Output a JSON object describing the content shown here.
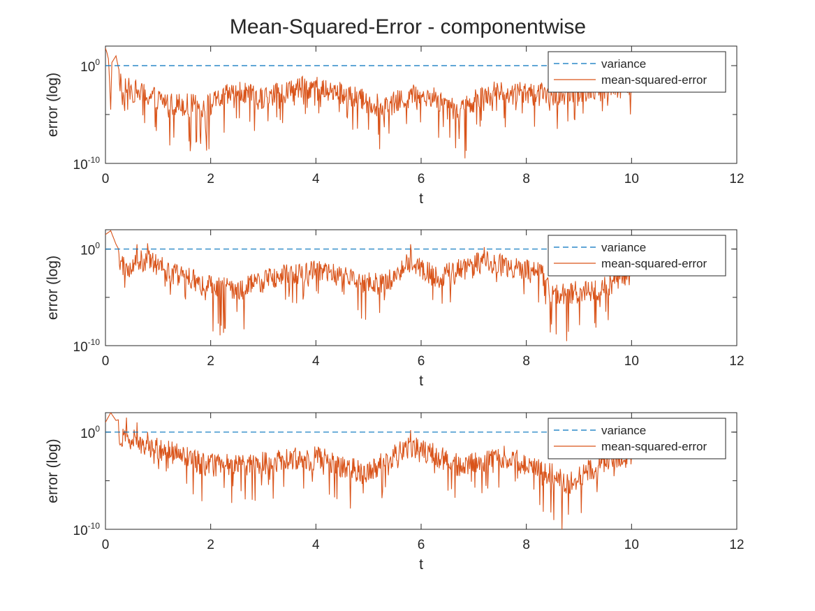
{
  "figure": {
    "title": "Mean-Squared-Error - componentwise"
  },
  "chart_data": [
    {
      "type": "line",
      "xlabel": "t",
      "ylabel": "error (log)",
      "xlim": [
        0,
        12
      ],
      "ylim_log10": [
        -10,
        2
      ],
      "yscale": "log",
      "xticks": [
        "0",
        "2",
        "4",
        "6",
        "8",
        "10",
        "12"
      ],
      "yticks": [
        {
          "base": "10",
          "exp": "-10",
          "value": -10
        },
        {
          "base": "10",
          "exp": "0",
          "value": 0
        }
      ],
      "legend_position": "top-right",
      "series": [
        {
          "name": "variance",
          "style": "dashed",
          "color": "#0072BD",
          "value": 1,
          "x_range": [
            0,
            10
          ]
        },
        {
          "name": "mean-squared-error",
          "style": "solid",
          "color": "#D95319",
          "x_range": [
            0,
            10
          ],
          "points": [
            [
              0,
              1.8
            ],
            [
              0.03,
              1.3
            ],
            [
              0.06,
              0.6
            ],
            [
              0.1,
              -4.5
            ],
            [
              0.12,
              0.3
            ],
            [
              0.2,
              1
            ],
            [
              0.3,
              -1.6
            ],
            [
              0.5,
              -2.5
            ],
            [
              1.2,
              -5.3
            ],
            [
              1.9,
              -6.3
            ],
            [
              2.5,
              -2.6
            ],
            [
              2.9,
              -4.5
            ],
            [
              3.6,
              -2.3
            ],
            [
              4.0,
              -1.5
            ],
            [
              5.3,
              -6.3
            ],
            [
              6.0,
              -3.0
            ],
            [
              6.5,
              -5.5
            ],
            [
              6.72,
              -7.5
            ],
            [
              7.2,
              -3.0
            ],
            [
              8.5,
              -3.5
            ],
            [
              9.2,
              -2.3
            ],
            [
              9.8,
              -1.6
            ],
            [
              10,
              -2.0
            ]
          ]
        }
      ]
    },
    {
      "type": "line",
      "xlabel": "t",
      "ylabel": "error (log)",
      "xlim": [
        0,
        12
      ],
      "ylim_log10": [
        -10,
        2
      ],
      "yscale": "log",
      "xticks": [
        "0",
        "2",
        "4",
        "6",
        "8",
        "10",
        "12"
      ],
      "yticks": [
        {
          "base": "10",
          "exp": "-10",
          "value": -10
        },
        {
          "base": "10",
          "exp": "0",
          "value": 0
        }
      ],
      "legend_position": "top-right",
      "series": [
        {
          "name": "variance",
          "style": "dashed",
          "color": "#0072BD",
          "value": 1,
          "x_range": [
            0,
            10
          ]
        },
        {
          "name": "mean-squared-error",
          "style": "solid",
          "color": "#D95319",
          "x_range": [
            0,
            10
          ],
          "points": [
            [
              0,
              1.5
            ],
            [
              0.1,
              1.9
            ],
            [
              0.2,
              0.5
            ],
            [
              0.4,
              -1.5
            ],
            [
              0.6,
              0.5
            ],
            [
              0.8,
              0.6
            ],
            [
              1.0,
              -1.0
            ],
            [
              1.9,
              -5.3
            ],
            [
              2.5,
              -6.5
            ],
            [
              3.3,
              -3.0
            ],
            [
              4.0,
              -2.0
            ],
            [
              5.3,
              -5.3
            ],
            [
              5.8,
              0.5
            ],
            [
              6.3,
              -3.5
            ],
            [
              7.2,
              0.2
            ],
            [
              8.4,
              -3.0
            ],
            [
              8.48,
              -7.8
            ],
            [
              9.4,
              -6.0
            ],
            [
              10,
              -2.3
            ]
          ]
        }
      ]
    },
    {
      "type": "line",
      "xlabel": "t",
      "ylabel": "error (log)",
      "xlim": [
        0,
        12
      ],
      "ylim_log10": [
        -10,
        2
      ],
      "yscale": "log",
      "xticks": [
        "0",
        "2",
        "4",
        "6",
        "8",
        "10",
        "12"
      ],
      "yticks": [
        {
          "base": "10",
          "exp": "-10",
          "value": -10
        },
        {
          "base": "10",
          "exp": "0",
          "value": 0
        }
      ],
      "legend_position": "top-right",
      "series": [
        {
          "name": "variance",
          "style": "dashed",
          "color": "#0072BD",
          "value": 1,
          "x_range": [
            0,
            10
          ]
        },
        {
          "name": "mean-squared-error",
          "style": "solid",
          "color": "#D95319",
          "x_range": [
            0,
            10
          ],
          "points": [
            [
              0,
              1.0
            ],
            [
              0.1,
              2.0
            ],
            [
              0.2,
              1.2
            ],
            [
              0.4,
              1.5
            ],
            [
              0.6,
              1.0
            ],
            [
              0.8,
              0.0
            ],
            [
              1.5,
              -2.5
            ],
            [
              1.9,
              -4.5
            ],
            [
              3.0,
              -4.0
            ],
            [
              4.0,
              -2.5
            ],
            [
              4.9,
              -6.3
            ],
            [
              5.4,
              -3.0
            ],
            [
              5.8,
              0.2
            ],
            [
              6.7,
              -4.5
            ],
            [
              7.6,
              -2.5
            ],
            [
              8.3,
              -5.5
            ],
            [
              8.8,
              -8.5
            ],
            [
              9.5,
              -3.5
            ],
            [
              10,
              -2.5
            ]
          ]
        }
      ]
    }
  ]
}
